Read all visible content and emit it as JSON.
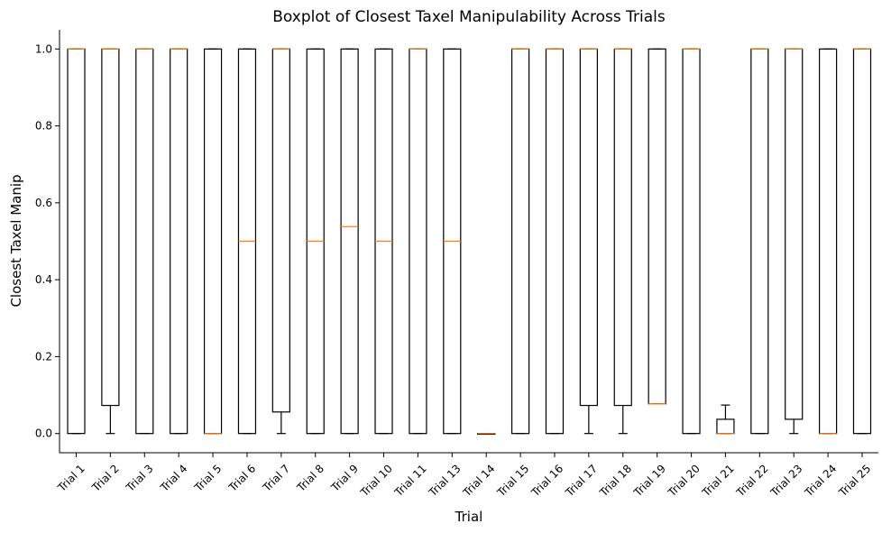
{
  "chart_data": {
    "type": "boxplot",
    "title": "Boxplot of Closest Taxel Manipulability Across Trials",
    "xlabel": "Trial",
    "ylabel": "Closest Taxel Manip",
    "ylim": [
      -0.05,
      1.05
    ],
    "yticks": [
      "0.0",
      "0.2",
      "0.4",
      "0.6",
      "0.8",
      "1.0"
    ],
    "grid": false,
    "colors": {
      "box": "#000000",
      "median": "#ff7f0e"
    },
    "categories": [
      "Trial 1",
      "Trial 2",
      "Trial 3",
      "Trial 4",
      "Trial 5",
      "Trial 6",
      "Trial 7",
      "Trial 8",
      "Trial 9",
      "Trial 10",
      "Trial 11",
      "Trial 13",
      "Trial 14",
      "Trial 15",
      "Trial 16",
      "Trial 17",
      "Trial 18",
      "Trial 19",
      "Trial 20",
      "Trial 21",
      "Trial 22",
      "Trial 23",
      "Trial 24",
      "Trial 25"
    ],
    "boxes": [
      {
        "whislo": 0,
        "q1": 0,
        "med": 1,
        "q3": 1,
        "whishi": 1
      },
      {
        "whislo": 0,
        "q1": 0.073,
        "med": 1,
        "q3": 1,
        "whishi": 1
      },
      {
        "whislo": 0,
        "q1": 0,
        "med": 1,
        "q3": 1,
        "whishi": 1
      },
      {
        "whislo": 0,
        "q1": 0,
        "med": 1,
        "q3": 1,
        "whishi": 1
      },
      {
        "whislo": 0,
        "q1": 0,
        "med": 0,
        "q3": 1,
        "whishi": 1
      },
      {
        "whislo": 0,
        "q1": 0,
        "med": 0.5,
        "q3": 1,
        "whishi": 1
      },
      {
        "whislo": 0,
        "q1": 0.056,
        "med": 1,
        "q3": 1,
        "whishi": 1
      },
      {
        "whislo": 0,
        "q1": 0,
        "med": 0.5,
        "q3": 1,
        "whishi": 1
      },
      {
        "whislo": 0,
        "q1": 0,
        "med": 0.538,
        "q3": 1,
        "whishi": 1
      },
      {
        "whislo": 0,
        "q1": 0,
        "med": 0.5,
        "q3": 1,
        "whishi": 1
      },
      {
        "whislo": 0,
        "q1": 0,
        "med": 1,
        "q3": 1,
        "whishi": 1
      },
      {
        "whislo": 0,
        "q1": 0,
        "med": 0.5,
        "q3": 1,
        "whishi": 1
      },
      {
        "whislo": 0,
        "q1": 0,
        "med": 0,
        "q3": 0,
        "whishi": 0
      },
      {
        "whislo": 0,
        "q1": 0,
        "med": 1,
        "q3": 1,
        "whishi": 1
      },
      {
        "whislo": 0,
        "q1": 0,
        "med": 1,
        "q3": 1,
        "whishi": 1
      },
      {
        "whislo": 0,
        "q1": 0.073,
        "med": 1,
        "q3": 1,
        "whishi": 1
      },
      {
        "whislo": 0,
        "q1": 0.073,
        "med": 1,
        "q3": 1,
        "whishi": 1
      },
      {
        "whislo": 0.077,
        "q1": 0.077,
        "med": 0.077,
        "q3": 1,
        "whishi": 1
      },
      {
        "whislo": 0,
        "q1": 0,
        "med": 1,
        "q3": 1,
        "whishi": 1
      },
      {
        "whislo": 0,
        "q1": 0,
        "med": 0,
        "q3": 0.037,
        "whishi": 0.074
      },
      {
        "whislo": 0,
        "q1": 0,
        "med": 1,
        "q3": 1,
        "whishi": 1
      },
      {
        "whislo": 0,
        "q1": 0.037,
        "med": 1,
        "q3": 1,
        "whishi": 1
      },
      {
        "whislo": 0,
        "q1": 0,
        "med": 0,
        "q3": 1,
        "whishi": 1
      },
      {
        "whislo": 0,
        "q1": 0,
        "med": 1,
        "q3": 1,
        "whishi": 1
      }
    ]
  }
}
